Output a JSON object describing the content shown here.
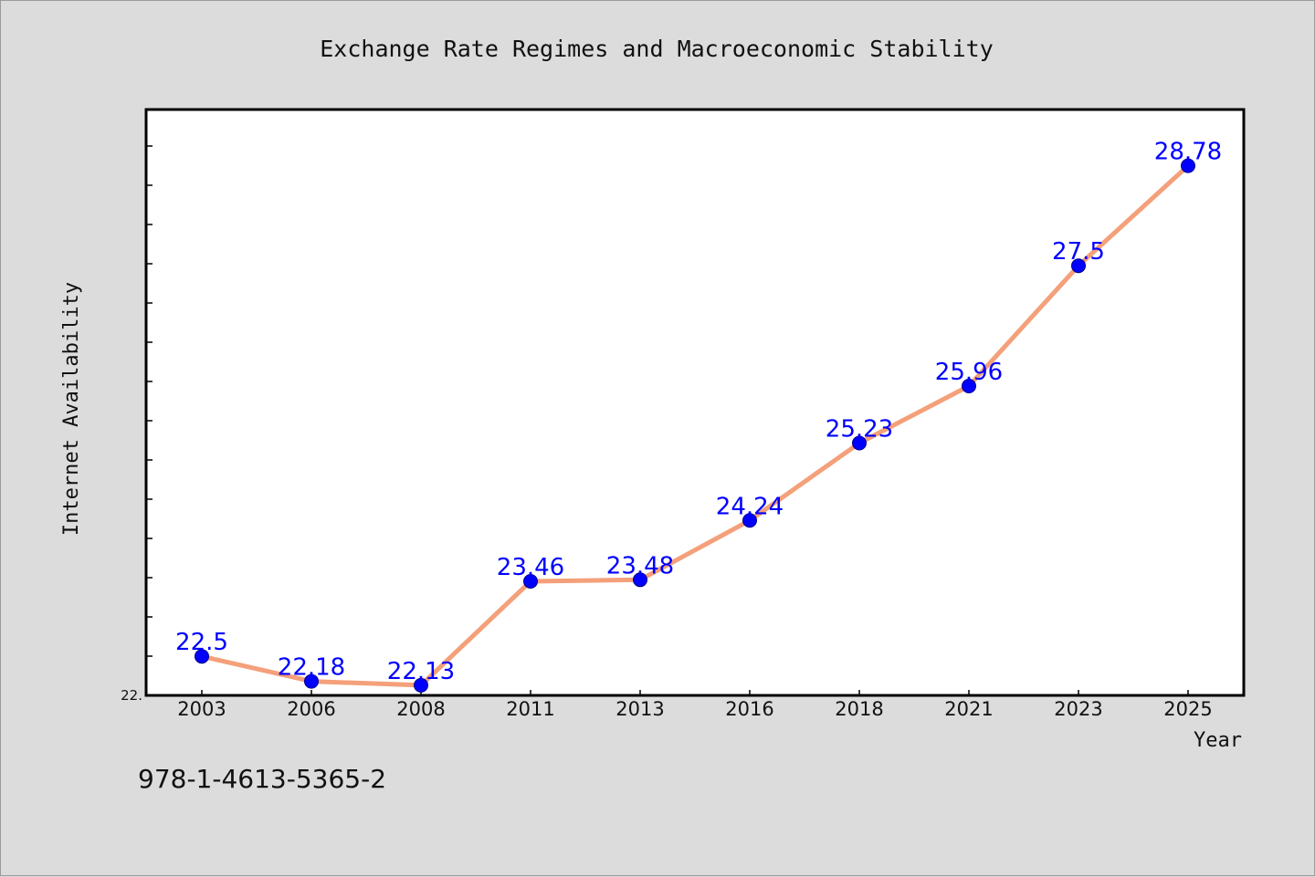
{
  "chart_data": {
    "type": "line",
    "title": "Exchange Rate Regimes and Macroeconomic Stability",
    "xlabel": "Year",
    "ylabel": "Internet Availability",
    "categories": [
      "2003",
      "2006",
      "2008",
      "2011",
      "2013",
      "2016",
      "2018",
      "2021",
      "2023",
      "2025"
    ],
    "series": [
      {
        "values": [
          22.5,
          22.18,
          22.13,
          23.46,
          23.48,
          24.24,
          25.23,
          25.96,
          27.5,
          28.78
        ],
        "labels": [
          "22.5",
          "22.18",
          "22.13",
          "23.46",
          "23.48",
          "24.24",
          "25.23",
          "25.96",
          "27.5",
          "28.78"
        ]
      }
    ],
    "ylim": [
      22.0,
      29.5
    ],
    "ytick_labels": [
      "22."
    ],
    "grid": false,
    "legend": "none",
    "colors": {
      "line": "#f4a07a",
      "marker": "#0000ff",
      "data_label": "#0000ff",
      "plot_background": "#ffffff",
      "figure_background": "#dcdcdc"
    }
  },
  "footer": {
    "text": "978-1-4613-5365-2"
  }
}
